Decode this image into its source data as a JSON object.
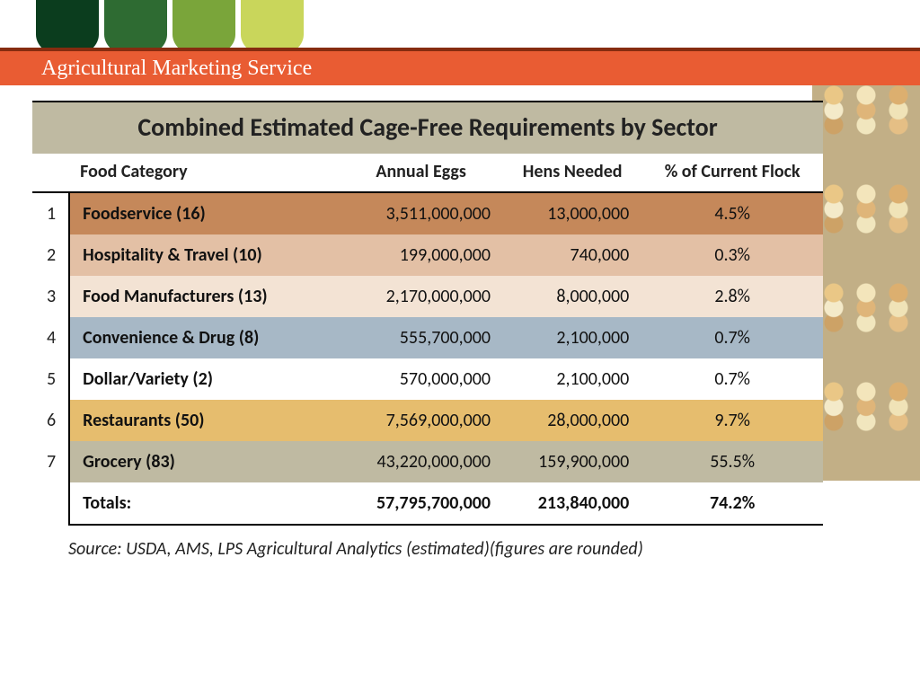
{
  "header": {
    "banner_text": "Agricultural Marketing Service",
    "shape_colors": [
      "#0b3d1e",
      "#2e6b32",
      "#7aa53a",
      "#c9d65b"
    ],
    "banner_bg": "#e95c33",
    "banner_border": "#862c10"
  },
  "table": {
    "title": "Combined Estimated Cage-Free Requirements by Sector",
    "title_band_color": "#bfbaa2",
    "columns": [
      "Food Category",
      "Annual Eggs",
      "Hens Needed",
      "% of Current Flock"
    ],
    "rows": [
      {
        "n": "1",
        "category": "Foodservice (16)",
        "eggs": "3,511,000,000",
        "hens": "13,000,000",
        "pct": "4.5%",
        "bg": "#c5885a"
      },
      {
        "n": "2",
        "category": "Hospitality & Travel (10)",
        "eggs": "199,000,000",
        "hens": "740,000",
        "pct": "0.3%",
        "bg": "#e3c0a5"
      },
      {
        "n": "3",
        "category": "Food Manufacturers (13)",
        "eggs": "2,170,000,000",
        "hens": "8,000,000",
        "pct": "2.8%",
        "bg": "#f3e3d4"
      },
      {
        "n": "4",
        "category": "Convenience & Drug (8)",
        "eggs": "555,700,000",
        "hens": "2,100,000",
        "pct": "0.7%",
        "bg": "#a7b8c6"
      },
      {
        "n": "5",
        "category": "Dollar/Variety (2)",
        "eggs": "570,000,000",
        "hens": "2,100,000",
        "pct": "0.7%",
        "bg": "#ffffff"
      },
      {
        "n": "6",
        "category": "Restaurants (50)",
        "eggs": "7,569,000,000",
        "hens": "28,000,000",
        "pct": "9.7%",
        "bg": "#e6bd6e"
      },
      {
        "n": "7",
        "category": "Grocery (83)",
        "eggs": "43,220,000,000",
        "hens": "159,900,000",
        "pct": "55.5%",
        "bg": "#bfbaa2"
      }
    ],
    "totals": {
      "label": "Totals:",
      "eggs": "57,795,700,000",
      "hens": "213,840,000",
      "pct": "74.2%"
    }
  },
  "source": "Source:  USDA, AMS, LPS Agricultural Analytics (estimated)(figures are rounded)"
}
